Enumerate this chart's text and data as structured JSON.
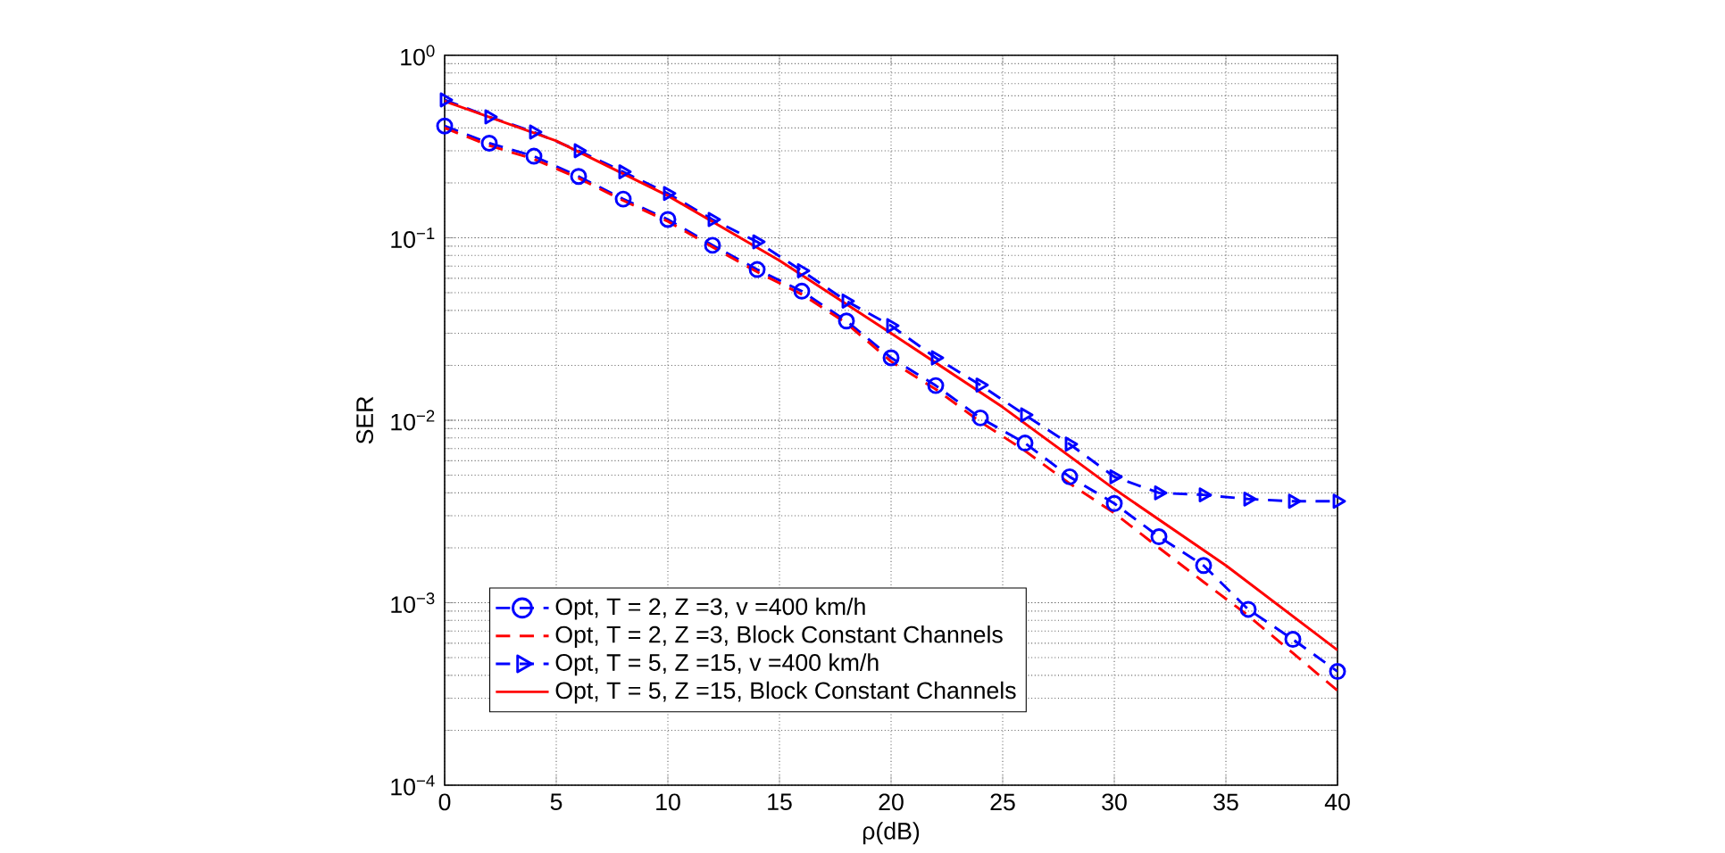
{
  "chart_data": {
    "type": "line",
    "xlabel": "ρ(dB)",
    "ylabel": "SER",
    "x": [
      0,
      2,
      4,
      6,
      8,
      10,
      12,
      14,
      16,
      18,
      20,
      22,
      24,
      26,
      28,
      30,
      32,
      34,
      36,
      38,
      40
    ],
    "xlim": [
      0,
      40
    ],
    "xticks": [
      0,
      5,
      10,
      15,
      20,
      25,
      30,
      35,
      40
    ],
    "ylim": [
      0.0001,
      1
    ],
    "log": "y",
    "yticks": [
      {
        "value": 0.0001,
        "label": "10$^{−4}$"
      },
      {
        "value": 0.001,
        "label": "10$^{−3}$"
      },
      {
        "value": 0.01,
        "label": "10$^{−2}$"
      },
      {
        "value": 0.1,
        "label": "10$^{−1}$"
      },
      {
        "value": 1,
        "label": "10$^{0}$"
      }
    ],
    "grid": true,
    "legend": "bottom left",
    "series": [
      {
        "name": "Opt, T = 2, Z =3, v =400 km/h",
        "color": "#0000ff",
        "marker": "circle",
        "line_style": "dashed",
        "values": [
          0.41,
          0.33,
          0.28,
          0.217,
          0.163,
          0.126,
          0.091,
          0.067,
          0.051,
          0.035,
          0.022,
          0.0155,
          0.0103,
          0.0075,
          0.0049,
          0.0035,
          0.0023,
          0.0016,
          0.00092,
          0.00063,
          0.00042
        ]
      },
      {
        "name": "Opt, T = 2, Z =3, Block Constant Channels",
        "color": "#ff0000",
        "marker": "none",
        "line_style": "dashed",
        "values": [
          0.4,
          0.32,
          0.27,
          0.212,
          0.16,
          0.123,
          0.089,
          0.065,
          0.049,
          0.034,
          0.021,
          0.0148,
          0.0098,
          0.0068,
          0.0045,
          0.0031,
          0.002,
          0.0013,
          0.00085,
          0.00053,
          0.00033
        ]
      },
      {
        "name": "Opt, T = 5, Z =15, v =400 km/h",
        "color": "#0000ff",
        "marker": "triangle",
        "line_style": "dashed",
        "values": [
          0.57,
          0.46,
          0.38,
          0.3,
          0.23,
          0.175,
          0.126,
          0.095,
          0.066,
          0.045,
          0.033,
          0.022,
          0.0156,
          0.0107,
          0.0074,
          0.0049,
          0.004,
          0.0039,
          0.0037,
          0.0036,
          0.0036
        ]
      },
      {
        "name": "Opt, T = 5, Z =15, Block Constant Channels",
        "color": "#ff0000",
        "marker": "none",
        "line_style": "solid",
        "x": [
          0,
          5,
          10,
          15,
          20,
          25,
          30,
          35,
          40
        ],
        "values": [
          0.56,
          0.34,
          0.17,
          0.075,
          0.03,
          0.0118,
          0.0042,
          0.0016,
          0.00055
        ]
      }
    ]
  }
}
